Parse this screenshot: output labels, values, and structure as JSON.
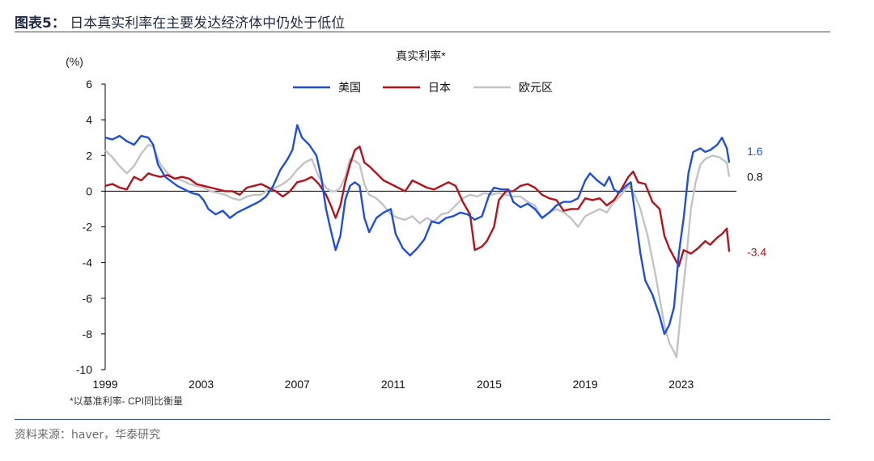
{
  "figure": {
    "label": "图表5：",
    "title": "日本真实利率在主要发达经济体中仍处于低位",
    "source": "资料来源：haver，华泰研究"
  },
  "chart_data": {
    "type": "line",
    "title": "真实利率*",
    "ylabel": "(%)",
    "footnote": "*以基准利率- CPI同比衡量",
    "ylim": [
      -10,
      6
    ],
    "yticks": [
      6,
      4,
      2,
      0,
      -2,
      -4,
      -6,
      -8,
      -10
    ],
    "xlim": [
      1999,
      2025.3
    ],
    "xticks": [
      1999,
      2003,
      2007,
      2011,
      2015,
      2019,
      2023
    ],
    "legend_position": "top-center",
    "series": [
      {
        "name": "美国",
        "color": "#1f4fd6",
        "end_label": "1.6",
        "points": [
          [
            1999.0,
            3.0
          ],
          [
            1999.3,
            2.9
          ],
          [
            1999.6,
            3.1
          ],
          [
            1999.9,
            2.8
          ],
          [
            2000.2,
            2.6
          ],
          [
            2000.5,
            3.1
          ],
          [
            2000.8,
            3.0
          ],
          [
            2001.0,
            2.6
          ],
          [
            2001.2,
            1.5
          ],
          [
            2001.5,
            0.8
          ],
          [
            2001.8,
            0.5
          ],
          [
            2002.0,
            0.3
          ],
          [
            2002.3,
            0.1
          ],
          [
            2002.6,
            -0.1
          ],
          [
            2002.9,
            -0.2
          ],
          [
            2003.1,
            -0.5
          ],
          [
            2003.3,
            -1.0
          ],
          [
            2003.6,
            -1.3
          ],
          [
            2003.9,
            -1.1
          ],
          [
            2004.2,
            -1.5
          ],
          [
            2004.5,
            -1.2
          ],
          [
            2004.8,
            -1.0
          ],
          [
            2005.1,
            -0.8
          ],
          [
            2005.4,
            -0.6
          ],
          [
            2005.7,
            -0.3
          ],
          [
            2006.0,
            0.3
          ],
          [
            2006.3,
            1.2
          ],
          [
            2006.6,
            1.8
          ],
          [
            2006.8,
            2.3
          ],
          [
            2007.0,
            3.7
          ],
          [
            2007.2,
            3.0
          ],
          [
            2007.5,
            2.6
          ],
          [
            2007.8,
            2.0
          ],
          [
            2008.0,
            0.8
          ],
          [
            2008.2,
            -1.0
          ],
          [
            2008.4,
            -2.2
          ],
          [
            2008.6,
            -3.3
          ],
          [
            2008.8,
            -2.5
          ],
          [
            2009.0,
            -0.5
          ],
          [
            2009.2,
            0.3
          ],
          [
            2009.4,
            0.5
          ],
          [
            2009.6,
            0.3
          ],
          [
            2009.8,
            -1.5
          ],
          [
            2010.0,
            -2.3
          ],
          [
            2010.3,
            -1.5
          ],
          [
            2010.6,
            -1.2
          ],
          [
            2010.9,
            -1.0
          ],
          [
            2011.1,
            -2.4
          ],
          [
            2011.4,
            -3.2
          ],
          [
            2011.7,
            -3.6
          ],
          [
            2012.0,
            -3.2
          ],
          [
            2012.3,
            -2.7
          ],
          [
            2012.6,
            -1.7
          ],
          [
            2012.9,
            -1.8
          ],
          [
            2013.2,
            -1.5
          ],
          [
            2013.5,
            -1.4
          ],
          [
            2013.8,
            -1.2
          ],
          [
            2014.1,
            -1.3
          ],
          [
            2014.4,
            -1.6
          ],
          [
            2014.7,
            -1.4
          ],
          [
            2015.0,
            -0.2
          ],
          [
            2015.2,
            0.2
          ],
          [
            2015.5,
            0.1
          ],
          [
            2015.8,
            0.1
          ],
          [
            2016.0,
            -0.6
          ],
          [
            2016.3,
            -0.9
          ],
          [
            2016.6,
            -0.7
          ],
          [
            2016.9,
            -1.0
          ],
          [
            2017.2,
            -1.5
          ],
          [
            2017.5,
            -1.2
          ],
          [
            2017.8,
            -0.8
          ],
          [
            2018.1,
            -0.6
          ],
          [
            2018.4,
            -0.6
          ],
          [
            2018.7,
            -0.4
          ],
          [
            2019.0,
            0.6
          ],
          [
            2019.2,
            1.0
          ],
          [
            2019.5,
            0.6
          ],
          [
            2019.8,
            0.3
          ],
          [
            2020.0,
            0.8
          ],
          [
            2020.2,
            0.1
          ],
          [
            2020.4,
            -0.1
          ],
          [
            2020.7,
            0.3
          ],
          [
            2020.9,
            0.5
          ],
          [
            2021.1,
            -1.5
          ],
          [
            2021.3,
            -3.5
          ],
          [
            2021.5,
            -5.0
          ],
          [
            2021.8,
            -5.8
          ],
          [
            2022.1,
            -7.0
          ],
          [
            2022.3,
            -8.0
          ],
          [
            2022.5,
            -7.5
          ],
          [
            2022.7,
            -6.5
          ],
          [
            2022.9,
            -3.5
          ],
          [
            2023.1,
            -1.5
          ],
          [
            2023.3,
            1.0
          ],
          [
            2023.5,
            2.2
          ],
          [
            2023.8,
            2.4
          ],
          [
            2024.0,
            2.2
          ],
          [
            2024.2,
            2.3
          ],
          [
            2024.5,
            2.6
          ],
          [
            2024.7,
            3.0
          ],
          [
            2024.9,
            2.4
          ],
          [
            2025.0,
            1.6
          ]
        ]
      },
      {
        "name": "日本",
        "color": "#b3131b",
        "end_label": "-3.4",
        "points": [
          [
            1999.0,
            0.3
          ],
          [
            1999.3,
            0.4
          ],
          [
            1999.6,
            0.2
          ],
          [
            1999.9,
            0.1
          ],
          [
            2000.2,
            0.8
          ],
          [
            2000.5,
            0.6
          ],
          [
            2000.8,
            1.0
          ],
          [
            2001.0,
            0.9
          ],
          [
            2001.3,
            0.8
          ],
          [
            2001.6,
            0.9
          ],
          [
            2001.9,
            0.7
          ],
          [
            2002.2,
            0.8
          ],
          [
            2002.5,
            0.7
          ],
          [
            2002.8,
            0.4
          ],
          [
            2003.1,
            0.3
          ],
          [
            2003.4,
            0.2
          ],
          [
            2003.7,
            0.1
          ],
          [
            2004.0,
            0.0
          ],
          [
            2004.3,
            0.0
          ],
          [
            2004.6,
            -0.2
          ],
          [
            2004.9,
            0.2
          ],
          [
            2005.2,
            0.3
          ],
          [
            2005.5,
            0.4
          ],
          [
            2005.8,
            0.2
          ],
          [
            2006.1,
            0.0
          ],
          [
            2006.4,
            -0.3
          ],
          [
            2006.7,
            0.0
          ],
          [
            2007.0,
            0.5
          ],
          [
            2007.3,
            0.6
          ],
          [
            2007.6,
            0.8
          ],
          [
            2007.9,
            0.4
          ],
          [
            2008.2,
            -0.2
          ],
          [
            2008.4,
            -0.8
          ],
          [
            2008.6,
            -1.5
          ],
          [
            2008.8,
            -0.8
          ],
          [
            2009.0,
            0.5
          ],
          [
            2009.2,
            1.5
          ],
          [
            2009.4,
            2.3
          ],
          [
            2009.6,
            2.5
          ],
          [
            2009.8,
            1.6
          ],
          [
            2010.0,
            1.4
          ],
          [
            2010.3,
            1.0
          ],
          [
            2010.6,
            0.6
          ],
          [
            2010.9,
            0.4
          ],
          [
            2011.2,
            0.2
          ],
          [
            2011.5,
            0.0
          ],
          [
            2011.8,
            0.6
          ],
          [
            2012.1,
            0.4
          ],
          [
            2012.4,
            0.2
          ],
          [
            2012.7,
            0.1
          ],
          [
            2013.0,
            0.3
          ],
          [
            2013.3,
            0.5
          ],
          [
            2013.6,
            0.3
          ],
          [
            2013.9,
            -0.6
          ],
          [
            2014.2,
            -1.3
          ],
          [
            2014.4,
            -3.3
          ],
          [
            2014.7,
            -3.1
          ],
          [
            2014.9,
            -2.8
          ],
          [
            2015.2,
            -2.0
          ],
          [
            2015.4,
            -0.5
          ],
          [
            2015.7,
            0.0
          ],
          [
            2016.0,
            0.0
          ],
          [
            2016.3,
            0.3
          ],
          [
            2016.6,
            0.4
          ],
          [
            2016.9,
            0.2
          ],
          [
            2017.2,
            -0.2
          ],
          [
            2017.5,
            -0.4
          ],
          [
            2017.8,
            -0.5
          ],
          [
            2018.1,
            -1.1
          ],
          [
            2018.4,
            -1.0
          ],
          [
            2018.7,
            -1.0
          ],
          [
            2019.0,
            -0.4
          ],
          [
            2019.3,
            -0.5
          ],
          [
            2019.6,
            -0.4
          ],
          [
            2019.9,
            -0.8
          ],
          [
            2020.2,
            -0.5
          ],
          [
            2020.5,
            0.1
          ],
          [
            2020.8,
            0.8
          ],
          [
            2021.0,
            1.1
          ],
          [
            2021.2,
            0.5
          ],
          [
            2021.5,
            0.4
          ],
          [
            2021.8,
            -0.6
          ],
          [
            2022.1,
            -1.0
          ],
          [
            2022.3,
            -2.5
          ],
          [
            2022.5,
            -3.2
          ],
          [
            2022.7,
            -3.7
          ],
          [
            2022.9,
            -4.2
          ],
          [
            2023.1,
            -3.3
          ],
          [
            2023.4,
            -3.5
          ],
          [
            2023.7,
            -3.2
          ],
          [
            2024.0,
            -2.8
          ],
          [
            2024.2,
            -3.0
          ],
          [
            2024.5,
            -2.6
          ],
          [
            2024.7,
            -2.4
          ],
          [
            2024.9,
            -2.1
          ],
          [
            2025.0,
            -3.4
          ]
        ]
      },
      {
        "name": "欧元区",
        "color": "#c3c3c3",
        "end_label": "0.8",
        "points": [
          [
            1999.0,
            2.3
          ],
          [
            1999.3,
            1.9
          ],
          [
            1999.6,
            1.4
          ],
          [
            1999.9,
            1.0
          ],
          [
            2000.2,
            1.4
          ],
          [
            2000.5,
            2.1
          ],
          [
            2000.8,
            2.6
          ],
          [
            2001.0,
            2.5
          ],
          [
            2001.3,
            1.5
          ],
          [
            2001.6,
            1.0
          ],
          [
            2001.9,
            0.7
          ],
          [
            2002.2,
            0.6
          ],
          [
            2002.5,
            0.4
          ],
          [
            2002.8,
            0.3
          ],
          [
            2003.1,
            0.2
          ],
          [
            2003.4,
            0.0
          ],
          [
            2003.7,
            -0.1
          ],
          [
            2004.0,
            -0.2
          ],
          [
            2004.3,
            -0.4
          ],
          [
            2004.6,
            -0.5
          ],
          [
            2004.9,
            -0.3
          ],
          [
            2005.2,
            -0.2
          ],
          [
            2005.5,
            -0.2
          ],
          [
            2005.8,
            0.1
          ],
          [
            2006.1,
            0.2
          ],
          [
            2006.4,
            0.4
          ],
          [
            2006.7,
            0.7
          ],
          [
            2007.0,
            1.2
          ],
          [
            2007.3,
            1.6
          ],
          [
            2007.6,
            1.8
          ],
          [
            2007.9,
            0.8
          ],
          [
            2008.2,
            0.2
          ],
          [
            2008.4,
            0.0
          ],
          [
            2008.6,
            0.0
          ],
          [
            2008.8,
            0.2
          ],
          [
            2009.0,
            0.8
          ],
          [
            2009.2,
            1.8
          ],
          [
            2009.4,
            1.7
          ],
          [
            2009.6,
            1.5
          ],
          [
            2009.8,
            0.4
          ],
          [
            2010.0,
            -0.2
          ],
          [
            2010.3,
            -0.4
          ],
          [
            2010.6,
            -0.8
          ],
          [
            2010.9,
            -1.3
          ],
          [
            2011.2,
            -1.5
          ],
          [
            2011.5,
            -1.6
          ],
          [
            2011.8,
            -1.4
          ],
          [
            2012.1,
            -1.8
          ],
          [
            2012.4,
            -1.5
          ],
          [
            2012.7,
            -1.7
          ],
          [
            2013.0,
            -1.3
          ],
          [
            2013.3,
            -1.2
          ],
          [
            2013.6,
            -0.8
          ],
          [
            2013.9,
            -0.4
          ],
          [
            2014.2,
            -0.2
          ],
          [
            2014.5,
            -0.3
          ],
          [
            2014.8,
            -0.1
          ],
          [
            2015.1,
            -0.2
          ],
          [
            2015.4,
            -0.1
          ],
          [
            2015.7,
            -0.2
          ],
          [
            2016.0,
            -0.3
          ],
          [
            2016.3,
            -0.3
          ],
          [
            2016.6,
            -0.6
          ],
          [
            2016.9,
            -0.8
          ],
          [
            2017.2,
            -1.5
          ],
          [
            2017.5,
            -1.2
          ],
          [
            2017.8,
            -1.0
          ],
          [
            2018.1,
            -1.2
          ],
          [
            2018.4,
            -1.5
          ],
          [
            2018.7,
            -2.0
          ],
          [
            2019.0,
            -1.4
          ],
          [
            2019.3,
            -1.2
          ],
          [
            2019.6,
            -1.0
          ],
          [
            2019.9,
            -1.2
          ],
          [
            2020.2,
            -0.6
          ],
          [
            2020.5,
            -0.2
          ],
          [
            2020.8,
            0.3
          ],
          [
            2021.0,
            0.0
          ],
          [
            2021.3,
            -1.0
          ],
          [
            2021.6,
            -2.5
          ],
          [
            2021.9,
            -4.5
          ],
          [
            2022.1,
            -6.0
          ],
          [
            2022.3,
            -7.5
          ],
          [
            2022.5,
            -8.5
          ],
          [
            2022.7,
            -9.0
          ],
          [
            2022.8,
            -9.3
          ],
          [
            2023.0,
            -6.5
          ],
          [
            2023.2,
            -4.0
          ],
          [
            2023.4,
            -1.0
          ],
          [
            2023.6,
            0.5
          ],
          [
            2023.8,
            1.5
          ],
          [
            2024.0,
            1.8
          ],
          [
            2024.3,
            2.0
          ],
          [
            2024.6,
            1.9
          ],
          [
            2024.9,
            1.6
          ],
          [
            2025.0,
            0.8
          ]
        ]
      }
    ]
  }
}
